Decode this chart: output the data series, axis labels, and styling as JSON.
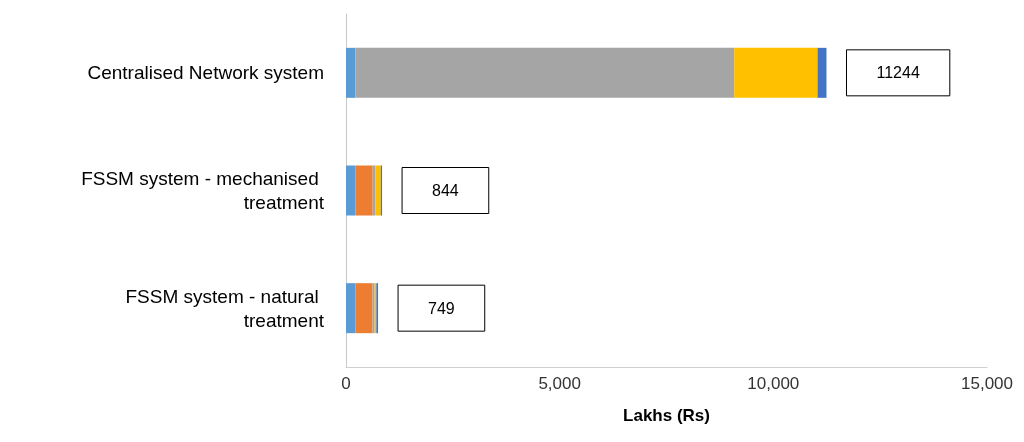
{
  "chart_data": {
    "type": "bar",
    "orientation": "horizontal",
    "stacked": true,
    "xlabel": "Lakhs (Rs)",
    "categories": [
      "Centralised Network system",
      "FSSM system - mechanised treatment",
      "FSSM system - natural treatment"
    ],
    "series": [
      {
        "color": "#5b9bd5",
        "values": [
          220,
          220,
          220
        ]
      },
      {
        "color": "#ed7d31",
        "values": [
          null,
          404,
          400
        ]
      },
      {
        "color": "#a5a5a5",
        "values": [
          8864,
          60,
          50
        ]
      },
      {
        "color": "#ffc000",
        "values": [
          1950,
          130,
          40
        ]
      },
      {
        "color": "#4472c4",
        "values": [
          210,
          30,
          40
        ]
      }
    ],
    "totals": [
      "11244",
      "844",
      "749"
    ],
    "xlim": [
      0,
      15000
    ],
    "xticks": [
      0,
      {
        "value": 5000,
        "label": "5,000"
      },
      {
        "value": 10000,
        "label": "10,000"
      },
      {
        "value": 15000,
        "label": "15,000"
      }
    ],
    "grid": false
  }
}
